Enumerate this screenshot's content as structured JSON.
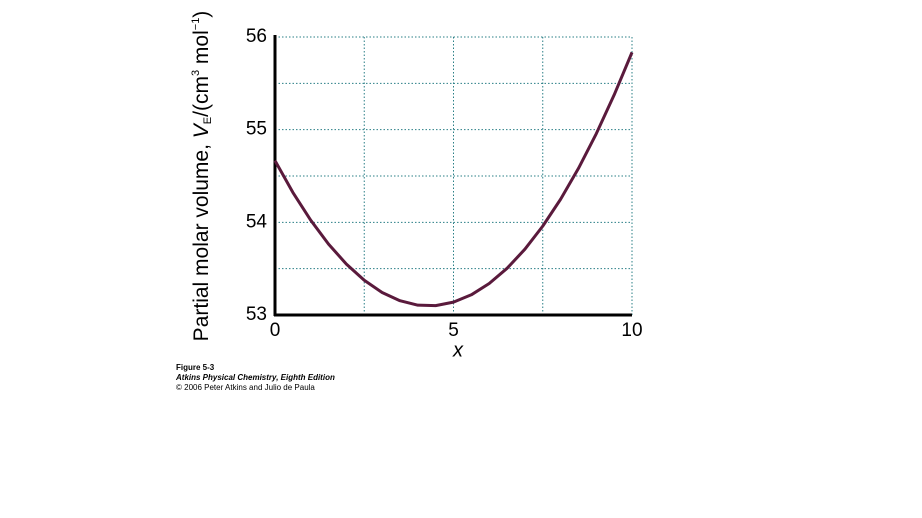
{
  "chart_data": {
    "type": "line",
    "ylabel": [
      "Partial molar volume, ",
      "V",
      "E",
      "/(cm",
      "3",
      " mol",
      "−1",
      ")"
    ],
    "xlabel": "x",
    "x": [
      0,
      0.5,
      1,
      1.5,
      2,
      2.5,
      3,
      3.5,
      4,
      4.5,
      5,
      5.5,
      6,
      6.5,
      7,
      7.5,
      8,
      8.5,
      9,
      9.5,
      10
    ],
    "series": [
      {
        "color": "#5a1a3c",
        "values": [
          54.666,
          54.323,
          54.023,
          53.765,
          53.549,
          53.375,
          53.243,
          53.154,
          53.106,
          53.101,
          53.139,
          53.218,
          53.34,
          53.504,
          53.71,
          53.959,
          54.249,
          54.582,
          54.957,
          55.375,
          55.834
        ]
      }
    ],
    "xlim": [
      0,
      10
    ],
    "xticks": [
      0,
      5,
      10
    ],
    "xminor_ticks": [
      2.5,
      7.5
    ],
    "ylim": [
      53,
      56
    ],
    "yticks": [
      53,
      54,
      55,
      56
    ],
    "yminor_ticks": [
      53.5,
      54.5,
      55.5
    ],
    "grid": true,
    "grid_color": "#2a7f86",
    "caption": [
      "Figure 5-3",
      "Atkins Physical Chemistry, Eighth Edition",
      "© 2006 Peter Atkins and Julio de Paula"
    ]
  }
}
